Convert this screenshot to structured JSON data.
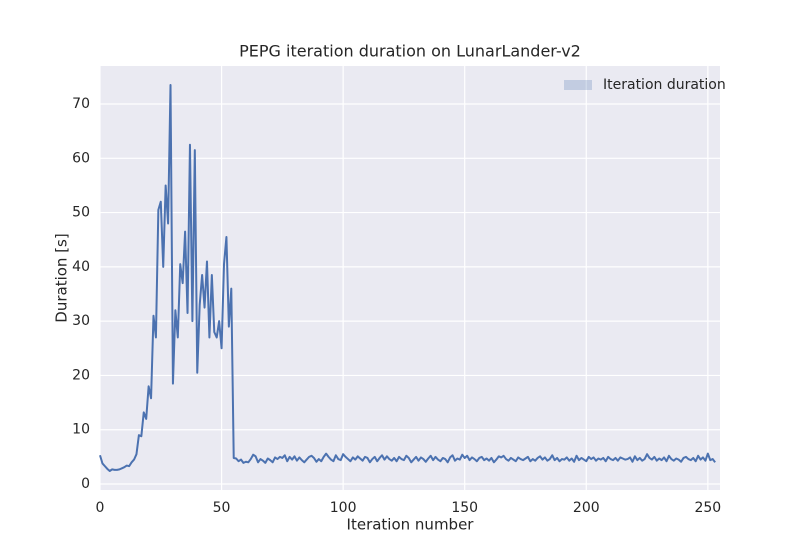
{
  "chart_data": {
    "type": "line",
    "title": "PEPG iteration duration on LunarLander-v2",
    "x_label": "Iteration number",
    "y_label": "Duration [s]",
    "xlim": [
      0,
      255
    ],
    "ylim": [
      -1.1,
      77
    ],
    "xticks": [
      0,
      50,
      100,
      150,
      200,
      250
    ],
    "yticks": [
      0,
      10,
      20,
      30,
      40,
      50,
      60,
      70
    ],
    "grid": true,
    "legend": "upper right",
    "series": [
      {
        "name": "Iteration duration",
        "color": "#4c72b0",
        "values": [
          5.3,
          3.8,
          3.3,
          2.8,
          2.4,
          2.7,
          2.6,
          2.6,
          2.7,
          2.9,
          3.1,
          3.4,
          3.3,
          4.0,
          4.5,
          5.5,
          9.0,
          8.8,
          13.2,
          12.0,
          18.0,
          15.8,
          31.0,
          27.0,
          50.5,
          52.0,
          40.0,
          55.0,
          48.0,
          73.5,
          18.5,
          32.0,
          27.0,
          40.5,
          37.0,
          46.5,
          31.5,
          62.5,
          30.0,
          61.5,
          20.5,
          33.0,
          38.5,
          32.5,
          41.0,
          27.0,
          38.5,
          28.0,
          27.0,
          30.0,
          25.0,
          40.5,
          45.5,
          29.0,
          36.0,
          4.8,
          4.7,
          4.2,
          4.5,
          3.9,
          4.1,
          4.0,
          4.6,
          5.4,
          5.1,
          4.0,
          4.6,
          4.3,
          3.9,
          4.7,
          4.4,
          4.0,
          4.9,
          4.6,
          5.0,
          4.8,
          5.3,
          4.2,
          5.0,
          4.5,
          5.1,
          4.3,
          4.9,
          4.4,
          4.0,
          4.5,
          5.0,
          5.2,
          4.8,
          4.1,
          4.6,
          4.2,
          5.0,
          5.6,
          5.0,
          4.5,
          4.2,
          5.3,
          4.6,
          4.4,
          5.5,
          5.0,
          4.6,
          4.2,
          4.9,
          4.5,
          5.1,
          4.7,
          4.3,
          5.0,
          4.8,
          4.0,
          4.6,
          5.0,
          4.2,
          4.8,
          5.3,
          4.5,
          5.1,
          4.6,
          4.3,
          4.8,
          4.2,
          5.0,
          4.6,
          4.4,
          5.2,
          4.8,
          4.0,
          4.5,
          5.0,
          4.3,
          4.9,
          4.6,
          4.1,
          4.7,
          5.2,
          4.4,
          5.0,
          4.5,
          4.2,
          4.8,
          4.6,
          4.0,
          4.9,
          5.3,
          4.3,
          4.7,
          4.5,
          5.4,
          4.8,
          5.2,
          4.4,
          4.9,
          4.6,
          4.2,
          4.8,
          5.0,
          4.4,
          4.7,
          4.3,
          4.8,
          4.0,
          4.5,
          5.1,
          4.9,
          5.2,
          4.6,
          4.3,
          4.8,
          4.5,
          4.2,
          4.9,
          4.6,
          4.4,
          4.7,
          5.0,
          4.2,
          4.6,
          4.3,
          4.8,
          5.1,
          4.5,
          4.9,
          4.3,
          4.6,
          5.3,
          4.4,
          4.8,
          4.2,
          4.6,
          4.5,
          4.9,
          4.3,
          4.7,
          4.1,
          5.2,
          4.4,
          4.8,
          4.5,
          4.2,
          5.0,
          4.6,
          4.9,
          4.3,
          4.7,
          4.5,
          4.8,
          4.2,
          5.0,
          4.6,
          4.4,
          4.8,
          4.3,
          4.9,
          4.7,
          4.5,
          4.6,
          4.9,
          4.1,
          5.1,
          4.4,
          4.8,
          4.3,
          4.6,
          5.5,
          4.8,
          4.5,
          5.0,
          4.3,
          4.7,
          4.4,
          4.9,
          4.2,
          5.2,
          4.6,
          4.3,
          4.7,
          4.5,
          4.1,
          4.8,
          5.0,
          4.6,
          4.4,
          4.8,
          4.2,
          5.2,
          4.5,
          4.9,
          4.3,
          5.6,
          4.4,
          4.6,
          4.0
        ]
      }
    ]
  }
}
